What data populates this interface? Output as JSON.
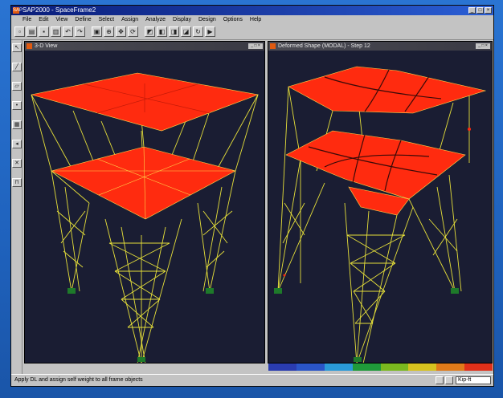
{
  "window": {
    "title": "SAP2000 - SpaceFrame2",
    "app_icon": "SAP",
    "controls": [
      "minimize-icon",
      "maximize-icon",
      "close-icon"
    ]
  },
  "menu": {
    "items": [
      "File",
      "Edit",
      "View",
      "Define",
      "Select",
      "Assign",
      "Analyze",
      "Display",
      "Design",
      "Options",
      "Help"
    ]
  },
  "toolbar": {
    "buttons": [
      "new-icon",
      "open-icon",
      "save-icon",
      "print-icon",
      "undo-icon",
      "redo-icon",
      "lock-icon",
      "zoom-icon",
      "pan-icon",
      "rotate-icon",
      "view-3d-icon",
      "view-xy-icon",
      "view-xz-icon",
      "view-yz-icon",
      "refresh-icon",
      "run-icon"
    ]
  },
  "left_tools": {
    "buttons": [
      "pointer-icon",
      "draw-frame-icon",
      "draw-shell-icon",
      "draw-joint-icon",
      "select-all-icon",
      "select-prev-icon",
      "clear-selection-icon",
      "intersect-icon"
    ]
  },
  "viewports": {
    "left": {
      "title": "3-D View",
      "icon": "viewport-icon"
    },
    "right": {
      "title": "Deformed Shape (MODAL) - Step 12",
      "icon": "viewport-icon"
    }
  },
  "scale": {
    "colors": [
      "#2a3cb0",
      "#2a55c8",
      "#2a9ad8",
      "#1f9a3a",
      "#7ab81f",
      "#d6c21f",
      "#e07a1a",
      "#e0301a"
    ]
  },
  "status": {
    "text": "Apply DL and assign self weight to all frame objects",
    "units": "Kip-ft"
  },
  "colors": {
    "background": "#1c5fb8",
    "viewport_bg": "#1a1d33",
    "slab": "#ff2b0f",
    "frame": "#e6e03a",
    "support": "#1e7a2a"
  }
}
